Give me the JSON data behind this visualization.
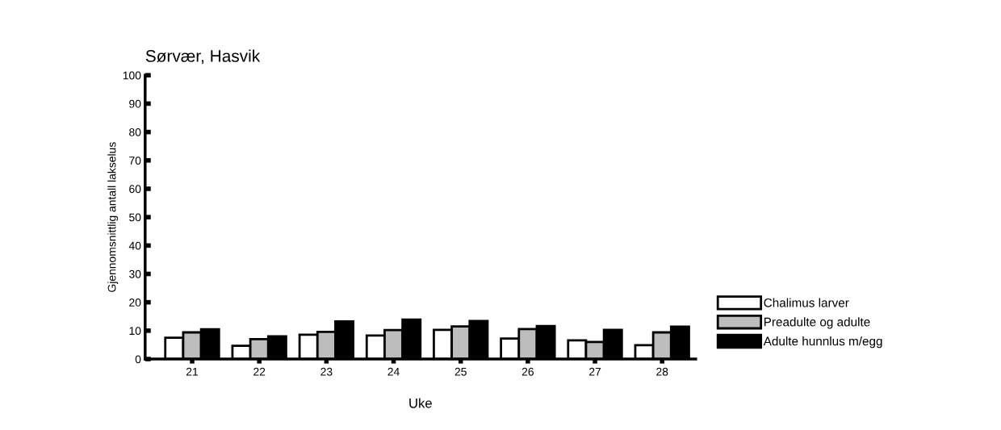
{
  "chart_data": {
    "type": "bar",
    "title": "Sørvær, Hasvik",
    "xlabel": "Uke",
    "ylabel": "Gjennomsnittlig antall lakselus",
    "categories": [
      "21",
      "22",
      "23",
      "24",
      "25",
      "26",
      "27",
      "28"
    ],
    "series": [
      {
        "name": "Chalimus larver",
        "color": "#ffffff",
        "values": [
          7.5,
          4.7,
          8.6,
          8.3,
          10.3,
          7.2,
          6.6,
          4.9
        ]
      },
      {
        "name": "Preadulte og adulte",
        "color": "#bdbdbd",
        "values": [
          9.4,
          7.0,
          9.6,
          10.2,
          11.5,
          10.6,
          6.0,
          9.4
        ]
      },
      {
        "name": "Adulte hunnlus m/egg",
        "color": "#000000",
        "values": [
          10.5,
          8.0,
          13.3,
          13.9,
          13.4,
          11.6,
          10.3,
          11.4
        ]
      }
    ],
    "ylim": [
      0,
      100
    ],
    "yticks": [
      0,
      10,
      20,
      30,
      40,
      50,
      60,
      70,
      80,
      90,
      100
    ],
    "grid": false,
    "legend": "bottom right"
  }
}
